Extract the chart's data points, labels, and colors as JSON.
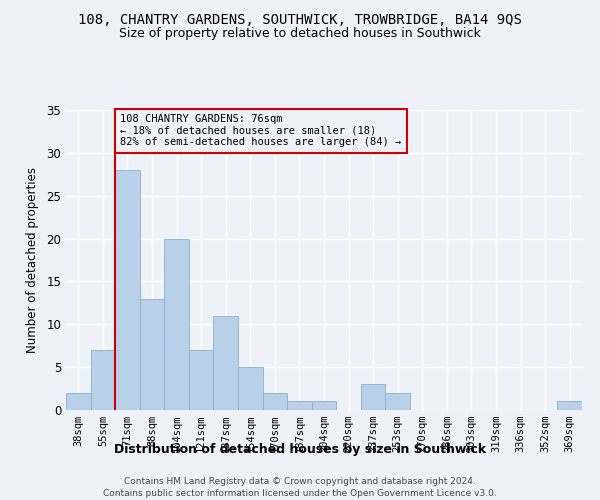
{
  "title": "108, CHANTRY GARDENS, SOUTHWICK, TROWBRIDGE, BA14 9QS",
  "subtitle": "Size of property relative to detached houses in Southwick",
  "xlabel": "Distribution of detached houses by size in Southwick",
  "ylabel": "Number of detached properties",
  "categories": [
    "38sqm",
    "55sqm",
    "71sqm",
    "88sqm",
    "104sqm",
    "121sqm",
    "137sqm",
    "154sqm",
    "170sqm",
    "187sqm",
    "204sqm",
    "220sqm",
    "237sqm",
    "253sqm",
    "270sqm",
    "286sqm",
    "303sqm",
    "319sqm",
    "336sqm",
    "352sqm",
    "369sqm"
  ],
  "values": [
    2,
    7,
    28,
    13,
    20,
    7,
    11,
    5,
    2,
    1,
    1,
    0,
    3,
    2,
    0,
    0,
    0,
    0,
    0,
    0,
    1
  ],
  "bar_color": "#b8d0e8",
  "bar_edge_color": "#8ab0cc",
  "vline_x_index": 2,
  "vline_color": "#cc0000",
  "annotation_text": "108 CHANTRY GARDENS: 76sqm\n← 18% of detached houses are smaller (18)\n82% of semi-detached houses are larger (84) →",
  "annotation_box_color": "#cc0000",
  "ylim": [
    0,
    35
  ],
  "yticks": [
    0,
    5,
    10,
    15,
    20,
    25,
    30,
    35
  ],
  "background_color": "#eef2f8",
  "grid_color": "#ffffff",
  "footer_line1": "Contains HM Land Registry data © Crown copyright and database right 2024.",
  "footer_line2": "Contains public sector information licensed under the Open Government Licence v3.0."
}
